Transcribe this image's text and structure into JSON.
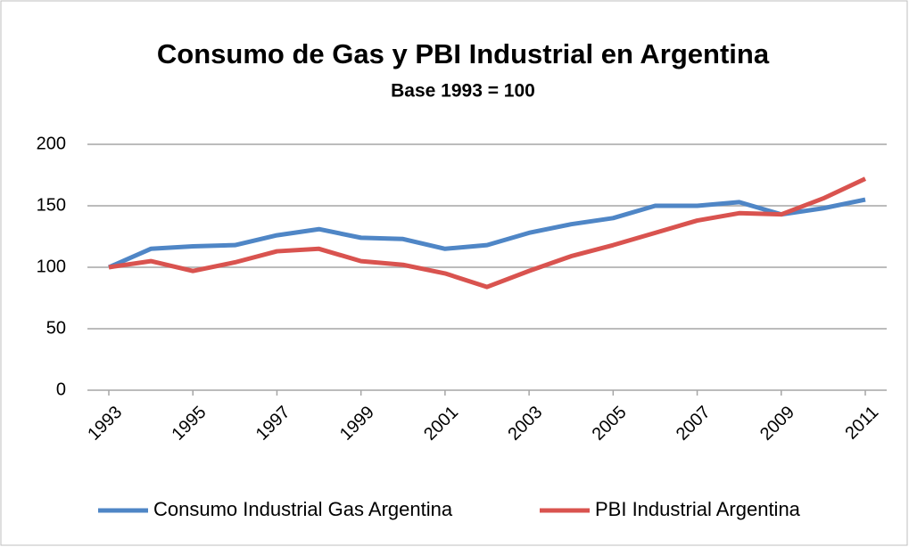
{
  "chart_data": {
    "type": "line",
    "title": "Consumo de Gas y PBI Industrial en Argentina",
    "subtitle": "Base 1993 = 100",
    "x": [
      1993,
      1994,
      1995,
      1996,
      1997,
      1998,
      1999,
      2000,
      2001,
      2002,
      2003,
      2004,
      2005,
      2006,
      2007,
      2008,
      2009,
      2010,
      2011
    ],
    "xlim": [
      1993,
      2011
    ],
    "xticks": [
      1993,
      1995,
      1997,
      1999,
      2001,
      2003,
      2005,
      2007,
      2009,
      2011
    ],
    "ylim": [
      0,
      200
    ],
    "yticks": [
      0,
      50,
      100,
      150,
      200
    ],
    "grid": true,
    "legend": "bottom",
    "series": [
      {
        "name": "Consumo Industrial Gas Argentina",
        "color": "#4f86c6",
        "values": [
          100,
          115,
          117,
          118,
          126,
          131,
          124,
          123,
          115,
          118,
          128,
          135,
          140,
          150,
          150,
          153,
          143,
          148,
          155
        ]
      },
      {
        "name": "PBI Industrial Argentina",
        "color": "#d9534f",
        "values": [
          100,
          105,
          97,
          104,
          113,
          115,
          105,
          102,
          95,
          84,
          97,
          109,
          118,
          128,
          138,
          144,
          143,
          156,
          172
        ]
      }
    ]
  }
}
